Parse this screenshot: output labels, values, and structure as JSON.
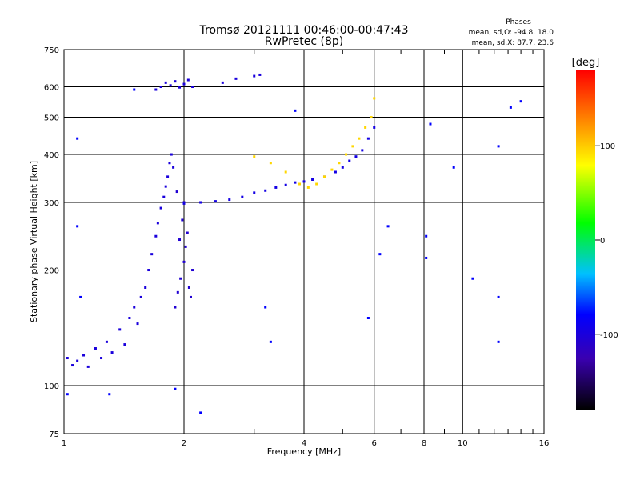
{
  "chart_data": {
    "type": "scatter",
    "title": "Tromsø 20121111 00:46:00-00:47:43",
    "subtitle": "RwPretec (8p)",
    "phase_info": {
      "title": "Phases",
      "line1": "mean, sd,O: -94.8, 18.0",
      "line2": "mean, sd,X:  87.7, 23.6"
    },
    "xlabel": "Frequency [MHz]",
    "ylabel": "Stationary phase Virtual Height [km]",
    "x_scale": "log",
    "y_scale": "log",
    "xlim": [
      1,
      16
    ],
    "ylim": [
      75,
      750
    ],
    "x_ticks": [
      1,
      2,
      4,
      6,
      8,
      10,
      16
    ],
    "x_tick_labels": [
      "1",
      "2",
      "4",
      "6",
      "8",
      "10",
      "16"
    ],
    "y_ticks": [
      75,
      100,
      200,
      300,
      400,
      500,
      600,
      750
    ],
    "y_tick_labels": [
      "75",
      "100",
      "200",
      "300",
      "400",
      "500",
      "600",
      "750"
    ],
    "grid": true,
    "colorbar": {
      "label": "[deg]",
      "range": [
        -180,
        180
      ],
      "ticks": [
        100,
        0,
        -100
      ],
      "tick_labels": [
        "100",
        "0",
        "-100"
      ]
    },
    "series": [
      {
        "description": "O-mode E/F1 low-frequency trace",
        "phase": -100,
        "points": [
          {
            "x": 1.02,
            "y": 118
          },
          {
            "x": 1.05,
            "y": 113
          },
          {
            "x": 1.08,
            "y": 116
          },
          {
            "x": 1.12,
            "y": 120
          },
          {
            "x": 1.15,
            "y": 112
          },
          {
            "x": 1.2,
            "y": 125
          },
          {
            "x": 1.24,
            "y": 118
          },
          {
            "x": 1.28,
            "y": 130
          },
          {
            "x": 1.32,
            "y": 122
          },
          {
            "x": 1.38,
            "y": 140
          },
          {
            "x": 1.42,
            "y": 128
          },
          {
            "x": 1.46,
            "y": 150
          },
          {
            "x": 1.5,
            "y": 160
          },
          {
            "x": 1.53,
            "y": 145
          },
          {
            "x": 1.56,
            "y": 170
          },
          {
            "x": 1.6,
            "y": 180
          },
          {
            "x": 1.63,
            "y": 200
          },
          {
            "x": 1.66,
            "y": 220
          },
          {
            "x": 1.7,
            "y": 245
          },
          {
            "x": 1.72,
            "y": 265
          },
          {
            "x": 1.75,
            "y": 290
          },
          {
            "x": 1.78,
            "y": 310
          },
          {
            "x": 1.8,
            "y": 330
          },
          {
            "x": 1.82,
            "y": 350
          },
          {
            "x": 1.84,
            "y": 380
          },
          {
            "x": 1.86,
            "y": 400
          },
          {
            "x": 1.88,
            "y": 370
          }
        ]
      },
      {
        "description": "O-mode dense cusp near 2 MHz",
        "phase": -105,
        "points": [
          {
            "x": 1.9,
            "y": 160
          },
          {
            "x": 1.93,
            "y": 175
          },
          {
            "x": 1.96,
            "y": 190
          },
          {
            "x": 2.0,
            "y": 210
          },
          {
            "x": 2.02,
            "y": 230
          },
          {
            "x": 2.04,
            "y": 250
          },
          {
            "x": 2.06,
            "y": 180
          },
          {
            "x": 2.08,
            "y": 170
          },
          {
            "x": 2.1,
            "y": 200
          },
          {
            "x": 1.95,
            "y": 240
          },
          {
            "x": 1.98,
            "y": 270
          },
          {
            "x": 2.0,
            "y": 300
          },
          {
            "x": 1.92,
            "y": 320
          }
        ]
      },
      {
        "description": "O-mode F2 trace",
        "phase": -95,
        "points": [
          {
            "x": 2.0,
            "y": 298
          },
          {
            "x": 2.2,
            "y": 300
          },
          {
            "x": 2.4,
            "y": 302
          },
          {
            "x": 2.6,
            "y": 305
          },
          {
            "x": 2.8,
            "y": 310
          },
          {
            "x": 3.0,
            "y": 318
          },
          {
            "x": 3.2,
            "y": 322
          },
          {
            "x": 3.4,
            "y": 328
          },
          {
            "x": 3.6,
            "y": 333
          },
          {
            "x": 3.8,
            "y": 338
          },
          {
            "x": 4.0,
            "y": 340
          },
          {
            "x": 4.2,
            "y": 344
          },
          {
            "x": 4.5,
            "y": 350
          },
          {
            "x": 4.8,
            "y": 360
          },
          {
            "x": 5.0,
            "y": 370
          },
          {
            "x": 5.2,
            "y": 385
          },
          {
            "x": 5.4,
            "y": 395
          },
          {
            "x": 5.6,
            "y": 410
          },
          {
            "x": 5.8,
            "y": 440
          },
          {
            "x": 6.0,
            "y": 470
          }
        ]
      },
      {
        "description": "X-mode F2 trace",
        "phase": 95,
        "points": [
          {
            "x": 3.0,
            "y": 395
          },
          {
            "x": 3.3,
            "y": 380
          },
          {
            "x": 3.6,
            "y": 360
          },
          {
            "x": 3.9,
            "y": 335
          },
          {
            "x": 4.1,
            "y": 328
          },
          {
            "x": 4.3,
            "y": 335
          },
          {
            "x": 4.5,
            "y": 350
          },
          {
            "x": 4.7,
            "y": 365
          },
          {
            "x": 4.9,
            "y": 380
          },
          {
            "x": 5.1,
            "y": 400
          },
          {
            "x": 5.3,
            "y": 420
          },
          {
            "x": 5.5,
            "y": 440
          },
          {
            "x": 5.7,
            "y": 470
          },
          {
            "x": 5.9,
            "y": 500
          },
          {
            "x": 6.0,
            "y": 560
          }
        ]
      },
      {
        "description": "Multi-hop echo near 600 km",
        "phase": -100,
        "points": [
          {
            "x": 1.7,
            "y": 590
          },
          {
            "x": 1.75,
            "y": 600
          },
          {
            "x": 1.8,
            "y": 615
          },
          {
            "x": 1.85,
            "y": 605
          },
          {
            "x": 1.9,
            "y": 620
          },
          {
            "x": 1.95,
            "y": 598
          },
          {
            "x": 2.0,
            "y": 610
          },
          {
            "x": 2.05,
            "y": 625
          },
          {
            "x": 2.1,
            "y": 600
          },
          {
            "x": 2.5,
            "y": 615
          },
          {
            "x": 2.7,
            "y": 630
          },
          {
            "x": 3.0,
            "y": 640
          },
          {
            "x": 3.1,
            "y": 645
          }
        ]
      },
      {
        "description": "Sparse scattered echoes",
        "phase": -80,
        "points": [
          {
            "x": 1.02,
            "y": 95
          },
          {
            "x": 1.1,
            "y": 170
          },
          {
            "x": 1.08,
            "y": 260
          },
          {
            "x": 1.08,
            "y": 440
          },
          {
            "x": 1.3,
            "y": 95
          },
          {
            "x": 1.5,
            "y": 590
          },
          {
            "x": 1.9,
            "y": 98
          },
          {
            "x": 2.2,
            "y": 85
          },
          {
            "x": 3.2,
            "y": 160
          },
          {
            "x": 3.3,
            "y": 130
          },
          {
            "x": 3.8,
            "y": 520
          },
          {
            "x": 5.8,
            "y": 150
          },
          {
            "x": 6.2,
            "y": 220
          },
          {
            "x": 6.5,
            "y": 260
          },
          {
            "x": 8.1,
            "y": 245
          },
          {
            "x": 8.1,
            "y": 215
          },
          {
            "x": 9.5,
            "y": 370
          },
          {
            "x": 10.6,
            "y": 190
          },
          {
            "x": 12.3,
            "y": 170
          },
          {
            "x": 12.3,
            "y": 130
          },
          {
            "x": 12.3,
            "y": 420
          },
          {
            "x": 13.2,
            "y": 530
          },
          {
            "x": 14.0,
            "y": 550
          },
          {
            "x": 8.3,
            "y": 480
          }
        ]
      }
    ]
  }
}
